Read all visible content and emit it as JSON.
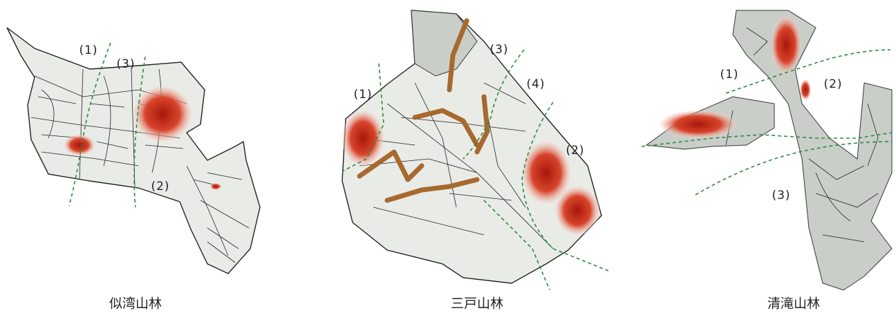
{
  "maps": [
    {
      "caption": "似湾山林",
      "zones": [
        "(1)",
        "(3)",
        "(2)"
      ]
    },
    {
      "caption": "三戸山林",
      "zones": [
        "(1)",
        "(3)",
        "(4)",
        "(2)"
      ]
    },
    {
      "caption": "清滝山林",
      "zones": [
        "(1)",
        "(2)",
        "(3)"
      ]
    }
  ]
}
